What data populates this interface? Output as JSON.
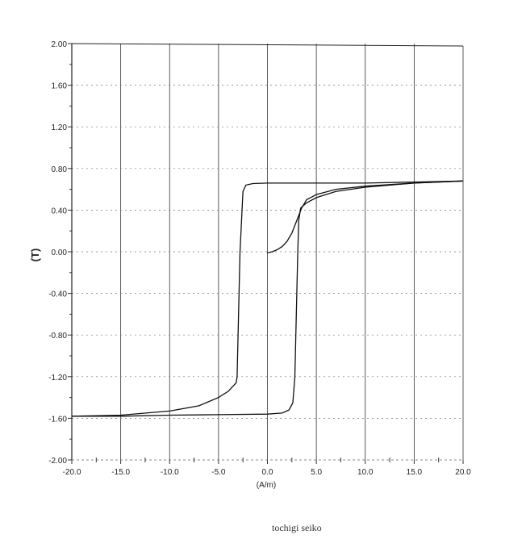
{
  "chart_data": {
    "type": "line",
    "title": "",
    "xlabel": "(A/m)",
    "ylabel": "(T)",
    "xlim": [
      -20,
      20
    ],
    "ylim": [
      -2.0,
      2.0
    ],
    "x_ticks": [
      "-20.0",
      "-15.0",
      "-10.0",
      "-5.0",
      "0.0",
      "5.0",
      "10.0",
      "15.0",
      "20.0"
    ],
    "y_ticks": [
      "2.00",
      "1.60",
      "1.20",
      "0.80",
      "0.40",
      "0.00",
      "-0.40",
      "-0.80",
      "-1.20",
      "-1.60",
      "-2.00"
    ],
    "grid": {
      "vertical": "solid",
      "horizontal": "dotted"
    },
    "line_color": "#111111",
    "series": [
      {
        "x": [
          20,
          15,
          10,
          5,
          0,
          -1.5,
          -2.2,
          -2.5,
          -2.6,
          -2.7,
          -2.8,
          -2.9,
          -3.0,
          -3.1,
          -3.2,
          -4,
          -5,
          -7,
          -10,
          -15,
          -20
        ],
        "y": [
          0.68,
          0.67,
          0.66,
          0.66,
          0.66,
          0.655,
          0.64,
          0.58,
          0.4,
          0.2,
          0.0,
          -0.4,
          -0.8,
          -1.2,
          -1.26,
          -1.34,
          -1.4,
          -1.48,
          -1.53,
          -1.57,
          -1.58
        ]
      },
      {
        "x": [
          -20,
          -15,
          -10,
          -5,
          0,
          1.5,
          2.2,
          2.6,
          2.8,
          2.9,
          3.0,
          3.1,
          3.2,
          3.4,
          4,
          5,
          7,
          10,
          15,
          20
        ],
        "y": [
          -1.58,
          -1.58,
          -1.57,
          -1.565,
          -1.56,
          -1.55,
          -1.52,
          -1.45,
          -1.2,
          -0.8,
          -0.4,
          0.0,
          0.3,
          0.42,
          0.47,
          0.52,
          0.58,
          0.62,
          0.66,
          0.68
        ]
      },
      {
        "x": [
          0,
          0.5,
          1,
          1.5,
          2,
          2.5,
          3,
          3.5,
          4,
          5,
          7,
          10,
          15,
          20
        ],
        "y": [
          -0.01,
          0.0,
          0.02,
          0.05,
          0.1,
          0.18,
          0.3,
          0.42,
          0.5,
          0.55,
          0.6,
          0.63,
          0.66,
          0.68
        ]
      }
    ]
  },
  "footer": {
    "credit": "tochigi  seiko"
  }
}
